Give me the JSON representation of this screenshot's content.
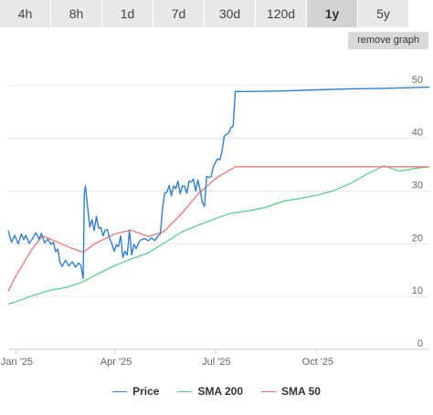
{
  "tabs": [
    {
      "label": "4h",
      "active": false
    },
    {
      "label": "8h",
      "active": false
    },
    {
      "label": "1d",
      "active": false
    },
    {
      "label": "7d",
      "active": false
    },
    {
      "label": "30d",
      "active": false
    },
    {
      "label": "120d",
      "active": false
    },
    {
      "label": "1y",
      "active": true
    },
    {
      "label": "5y",
      "active": false
    }
  ],
  "remove_graph_label": "remove graph",
  "chart_data": {
    "type": "line",
    "title": "",
    "xlabel": "",
    "ylabel": "",
    "ylim": [
      0,
      55
    ],
    "yticks": [
      0,
      10,
      20,
      30,
      40,
      50
    ],
    "x_axis": {
      "type": "date",
      "ticks": [
        {
          "date": "2025-01-01",
          "label": "Jan '25"
        },
        {
          "date": "2025-04-01",
          "label": "Apr '25"
        },
        {
          "date": "2025-07-01",
          "label": "Jul '25"
        },
        {
          "date": "2025-10-01",
          "label": "Oct '25"
        }
      ],
      "range": [
        "2024-12-25",
        "2026-01-11"
      ]
    },
    "grid": true,
    "legend_position": "bottom",
    "series": [
      {
        "name": "Price",
        "color": "#2f7ed8",
        "points": [
          [
            "2024-12-25",
            22.5
          ],
          [
            "2024-12-28",
            20.3
          ],
          [
            "2024-12-31",
            21.6
          ],
          [
            "2025-01-03",
            20.0
          ],
          [
            "2025-01-06",
            21.9
          ],
          [
            "2025-01-08",
            20.8
          ],
          [
            "2025-01-10",
            21.6
          ],
          [
            "2025-01-13",
            20.1
          ],
          [
            "2025-01-16",
            21.0
          ],
          [
            "2025-01-19",
            22.1
          ],
          [
            "2025-01-22",
            20.9
          ],
          [
            "2025-01-24",
            22.0
          ],
          [
            "2025-01-27",
            20.2
          ],
          [
            "2025-01-30",
            20.9
          ],
          [
            "2025-02-02",
            19.9
          ],
          [
            "2025-02-04",
            20.3
          ],
          [
            "2025-02-06",
            18.5
          ],
          [
            "2025-02-08",
            19.0
          ],
          [
            "2025-02-10",
            16.5
          ],
          [
            "2025-02-12",
            15.7
          ],
          [
            "2025-02-15",
            16.9
          ],
          [
            "2025-02-18",
            15.8
          ],
          [
            "2025-02-21",
            16.6
          ],
          [
            "2025-02-24",
            15.6
          ],
          [
            "2025-02-27",
            16.4
          ],
          [
            "2025-03-01",
            15.9
          ],
          [
            "2025-03-03",
            13.4
          ],
          [
            "2025-03-04",
            29.6
          ],
          [
            "2025-03-05",
            31.0
          ],
          [
            "2025-03-07",
            27.0
          ],
          [
            "2025-03-09",
            23.2
          ],
          [
            "2025-03-11",
            24.6
          ],
          [
            "2025-03-13",
            22.5
          ],
          [
            "2025-03-15",
            25.2
          ],
          [
            "2025-03-17",
            23.0
          ],
          [
            "2025-03-19",
            23.1
          ],
          [
            "2025-03-21",
            21.5
          ],
          [
            "2025-03-23",
            22.6
          ],
          [
            "2025-03-25",
            22.7
          ],
          [
            "2025-03-27",
            21.0
          ],
          [
            "2025-03-29",
            20.1
          ],
          [
            "2025-03-31",
            18.6
          ],
          [
            "2025-04-02",
            19.8
          ],
          [
            "2025-04-04",
            19.5
          ],
          [
            "2025-04-06",
            21.5
          ],
          [
            "2025-04-08",
            17.4
          ],
          [
            "2025-04-10",
            18.6
          ],
          [
            "2025-04-12",
            17.9
          ],
          [
            "2025-04-14",
            22.6
          ],
          [
            "2025-04-16",
            17.9
          ],
          [
            "2025-04-18",
            19.9
          ],
          [
            "2025-04-20",
            19.1
          ],
          [
            "2025-04-23",
            20.5
          ],
          [
            "2025-04-25",
            20.8
          ],
          [
            "2025-04-28",
            21.0
          ],
          [
            "2025-05-01",
            20.6
          ],
          [
            "2025-05-04",
            21.1
          ],
          [
            "2025-05-07",
            20.6
          ],
          [
            "2025-05-10",
            21.5
          ],
          [
            "2025-05-12",
            21.9
          ],
          [
            "2025-05-14",
            26.9
          ],
          [
            "2025-05-16",
            29.7
          ],
          [
            "2025-05-18",
            29.8
          ],
          [
            "2025-05-20",
            31.1
          ],
          [
            "2025-05-22",
            29.1
          ],
          [
            "2025-05-24",
            31.0
          ],
          [
            "2025-05-26",
            30.5
          ],
          [
            "2025-05-28",
            31.9
          ],
          [
            "2025-05-30",
            29.5
          ],
          [
            "2025-06-01",
            31.0
          ],
          [
            "2025-06-03",
            30.9
          ],
          [
            "2025-06-05",
            29.6
          ],
          [
            "2025-06-07",
            31.9
          ],
          [
            "2025-06-09",
            31.7
          ],
          [
            "2025-06-11",
            32.3
          ],
          [
            "2025-06-13",
            30.0
          ],
          [
            "2025-06-15",
            32.1
          ],
          [
            "2025-06-17",
            30.3
          ],
          [
            "2025-06-19",
            27.9
          ],
          [
            "2025-06-21",
            27.1
          ],
          [
            "2025-06-23",
            32.8
          ],
          [
            "2025-06-25",
            32.6
          ],
          [
            "2025-06-27",
            32.7
          ],
          [
            "2025-06-29",
            34.6
          ],
          [
            "2025-07-01",
            35.5
          ],
          [
            "2025-07-03",
            36.1
          ],
          [
            "2025-07-05",
            35.9
          ],
          [
            "2025-07-07",
            37.6
          ],
          [
            "2025-07-09",
            40.4
          ],
          [
            "2025-07-11",
            40.8
          ],
          [
            "2025-07-13",
            41.0
          ],
          [
            "2025-07-15",
            42.1
          ],
          [
            "2025-07-17",
            42.3
          ],
          [
            "2025-07-19",
            48.9
          ],
          [
            "2025-08-01",
            48.9
          ],
          [
            "2025-09-01",
            49.0
          ],
          [
            "2025-10-01",
            49.2
          ],
          [
            "2025-11-01",
            49.4
          ],
          [
            "2025-12-01",
            49.5
          ],
          [
            "2026-01-11",
            49.7
          ]
        ]
      },
      {
        "name": "SMA 200",
        "color": "#4fcf7f",
        "points": [
          [
            "2024-12-25",
            8.6
          ],
          [
            "2025-01-01",
            9.0
          ],
          [
            "2025-01-15",
            10.1
          ],
          [
            "2025-02-01",
            11.2
          ],
          [
            "2025-02-15",
            11.7
          ],
          [
            "2025-03-01",
            12.6
          ],
          [
            "2025-03-15",
            14.2
          ],
          [
            "2025-04-01",
            15.9
          ],
          [
            "2025-04-15",
            17.1
          ],
          [
            "2025-05-01",
            18.3
          ],
          [
            "2025-05-15",
            20.1
          ],
          [
            "2025-06-01",
            22.3
          ],
          [
            "2025-06-15",
            23.5
          ],
          [
            "2025-07-01",
            24.8
          ],
          [
            "2025-07-15",
            25.8
          ],
          [
            "2025-08-01",
            26.3
          ],
          [
            "2025-08-15",
            26.9
          ],
          [
            "2025-09-01",
            28.1
          ],
          [
            "2025-09-15",
            28.6
          ],
          [
            "2025-10-01",
            29.2
          ],
          [
            "2025-10-15",
            30.0
          ],
          [
            "2025-11-01",
            31.5
          ],
          [
            "2025-11-15",
            33.2
          ],
          [
            "2025-12-01",
            34.8
          ],
          [
            "2025-12-15",
            33.8
          ],
          [
            "2026-01-01",
            34.4
          ],
          [
            "2026-01-11",
            34.6
          ]
        ]
      },
      {
        "name": "SMA 50",
        "color": "#f26b6b",
        "points": [
          [
            "2024-12-25",
            11.0
          ],
          [
            "2025-01-01",
            13.9
          ],
          [
            "2025-01-15",
            18.8
          ],
          [
            "2025-01-25",
            21.5
          ],
          [
            "2025-02-05",
            20.6
          ],
          [
            "2025-02-20",
            19.2
          ],
          [
            "2025-03-03",
            18.4
          ],
          [
            "2025-03-15",
            20.2
          ],
          [
            "2025-04-01",
            21.9
          ],
          [
            "2025-04-15",
            22.6
          ],
          [
            "2025-05-01",
            21.4
          ],
          [
            "2025-05-15",
            22.3
          ],
          [
            "2025-06-01",
            25.9
          ],
          [
            "2025-06-15",
            29.4
          ],
          [
            "2025-07-01",
            32.4
          ],
          [
            "2025-07-19",
            34.6
          ],
          [
            "2025-09-01",
            34.6
          ],
          [
            "2025-11-01",
            34.6
          ],
          [
            "2026-01-11",
            34.6
          ]
        ]
      }
    ]
  }
}
